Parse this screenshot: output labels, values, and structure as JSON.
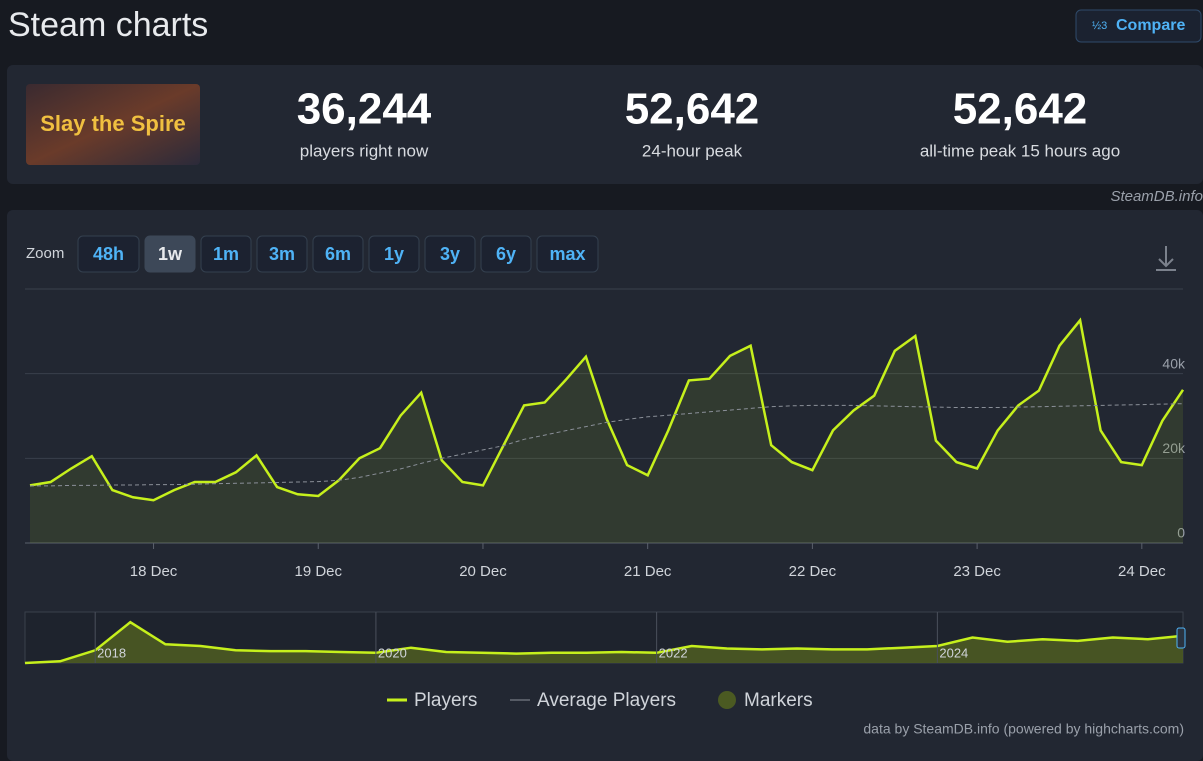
{
  "header": {
    "title": "Steam charts",
    "compare": "Compare"
  },
  "game": {
    "logo_text": "Slay the Spire"
  },
  "stats": [
    {
      "value": "36,244",
      "label": "players right now"
    },
    {
      "value": "52,642",
      "label": "24-hour peak"
    },
    {
      "value": "52,642",
      "label": "all-time peak 15 hours ago"
    }
  ],
  "source": "SteamDB.info",
  "zoom": {
    "label": "Zoom",
    "options": [
      "48h",
      "1w",
      "1m",
      "3m",
      "6m",
      "1y",
      "3y",
      "6y",
      "max"
    ],
    "active": "1w"
  },
  "credits": "data by SteamDB.info (powered by highcharts.com)",
  "chart_data": [
    {
      "type": "line",
      "categories": [
        null,
        null,
        null,
        null,
        null,
        null,
        "18 Dec",
        null,
        null,
        null,
        null,
        null,
        null,
        null,
        "19 Dec",
        null,
        null,
        null,
        null,
        null,
        null,
        null,
        "20 Dec",
        null,
        null,
        null,
        null,
        null,
        null,
        null,
        "21 Dec",
        null,
        null,
        null,
        null,
        null,
        null,
        null,
        "22 Dec",
        null,
        null,
        null,
        null,
        null,
        null,
        null,
        "23 Dec",
        null,
        null,
        null,
        null,
        null,
        null,
        null,
        "24 Dec",
        null,
        null
      ],
      "series": [
        {
          "name": "Players",
          "color": "#c6f01c",
          "values": [
            13600,
            14400,
            17600,
            20500,
            12500,
            10800,
            10100,
            12500,
            14400,
            14400,
            16700,
            20700,
            13200,
            11500,
            11100,
            14800,
            20000,
            22400,
            30100,
            35500,
            19500,
            14400,
            13600,
            23100,
            32500,
            33200,
            38400,
            44000,
            29400,
            18400,
            16000,
            26600,
            38400,
            38800,
            44200,
            46600,
            23100,
            19100,
            17200,
            26600,
            31300,
            34800,
            45400,
            48900,
            24200,
            19100,
            17600,
            26600,
            32500,
            36000,
            46600,
            52600,
            26600,
            19100,
            18400,
            28900,
            36200
          ]
        },
        {
          "name": "Average Players",
          "color": "#8a8f98",
          "dashed": true,
          "values": [
            13500,
            13500,
            13600,
            13600,
            13700,
            13700,
            13800,
            13800,
            13900,
            14000,
            14100,
            14200,
            14300,
            14400,
            14500,
            14800,
            15500,
            16500,
            17500,
            18800,
            20000,
            21000,
            22000,
            23000,
            24500,
            25500,
            26500,
            27500,
            28500,
            29200,
            29800,
            30200,
            30600,
            31000,
            31400,
            31800,
            32200,
            32400,
            32500,
            32500,
            32500,
            32400,
            32300,
            32200,
            32100,
            32000,
            32000,
            32000,
            32100,
            32200,
            32300,
            32400,
            32500,
            32600,
            32700,
            32800,
            32900
          ]
        }
      ],
      "markers": {
        "name": "Markers",
        "color": "#4b5a22"
      },
      "ylim": [
        0,
        60000
      ],
      "yticks": [
        0,
        {
          "value": 20000,
          "label": "20k"
        },
        {
          "value": 40000,
          "label": "40k"
        }
      ],
      "grid": true
    },
    {
      "type": "area",
      "categories": [
        null,
        null,
        "2018",
        null,
        null,
        null,
        null,
        null,
        null,
        null,
        "2020",
        null,
        null,
        null,
        null,
        null,
        null,
        null,
        "2022",
        null,
        null,
        null,
        null,
        null,
        null,
        null,
        "2024",
        null,
        null,
        null,
        null,
        null,
        null,
        null
      ],
      "series": [
        {
          "name": "Players",
          "color": "#c6f01c",
          "values": [
            0,
            2000,
            15000,
            48000,
            22000,
            20000,
            15000,
            14000,
            14000,
            13000,
            12000,
            18000,
            13000,
            12000,
            11000,
            12000,
            12000,
            13000,
            12000,
            20000,
            17000,
            16000,
            17000,
            16000,
            16000,
            18000,
            20000,
            30000,
            25000,
            28000,
            26000,
            30000,
            28000,
            32000
          ]
        }
      ],
      "ylim": [
        0,
        60000
      ]
    }
  ]
}
